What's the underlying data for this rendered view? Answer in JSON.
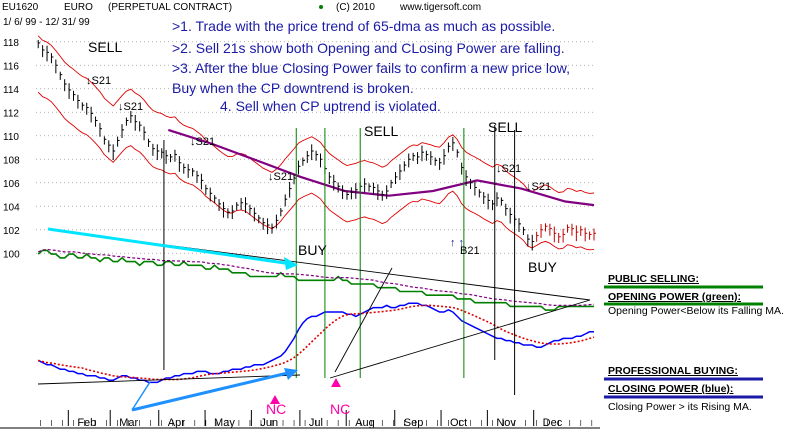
{
  "header": {
    "symbol": "EU1620",
    "name": "EURO",
    "contract": "(PERPETUAL CONTRACT)",
    "copyright": "(C) 2010",
    "site": "www.tigersoft.com",
    "range": "1/ 6/ 99 -  12/ 31/ 99"
  },
  "notes": [
    ">1. Trade with the price trend of 65-dma as much as possible.",
    ">2. Sell 21s show both Opening and CLosing Power are falling.",
    ">3. After the blue Closing Power fails to confirm a new price low,",
    "Buy when the CP downtrend is broken.",
    "4. Sell when CP uptrend is violated."
  ],
  "side_labels": {
    "public_selling": "PUBLIC SELLING:",
    "opening_power": "OPENING POWER (green):",
    "opening_desc": "Opening Power<Below its Falling MA.",
    "professional_buying": "PROFESSIONAL BUYING:",
    "closing_power": "CLOSING POWER (blue):",
    "closing_desc": "Closing Power > its Rising MA."
  },
  "colors": {
    "price_bars": "#000000",
    "ma65": "#800080",
    "bands": "#e00000",
    "opening_power": "#008000",
    "closing_power": "#0000ff",
    "cp_ma": "#e00000",
    "signal_lines": "#008000",
    "cyan_arrow": "#00e5ff",
    "blue_arrow": "#1e90ff",
    "nc_label": "#ff00aa",
    "accent_text": "#1a1aa6"
  },
  "chart_data": {
    "type": "line",
    "title": "EURO (PERPETUAL CONTRACT)",
    "xlabel": "",
    "ylabel": "",
    "ylim": [
      99,
      119
    ],
    "y_ticks": [
      100,
      102,
      104,
      106,
      108,
      110,
      112,
      114,
      116,
      118
    ],
    "months": [
      "Feb",
      "Mar",
      "Apr",
      "May",
      "Jun",
      "Jul",
      "Aug",
      "Sep",
      "Oct",
      "Nov",
      "Dec"
    ],
    "grid": true,
    "price_series": {
      "name": "Price",
      "x": [
        1,
        3,
        5,
        7,
        9,
        11,
        13,
        15,
        17,
        19,
        21,
        23,
        25,
        27,
        29,
        31,
        33,
        35,
        37,
        39,
        41,
        43,
        45,
        47,
        49,
        51,
        53,
        55,
        57,
        59,
        61,
        63,
        65,
        67,
        69,
        71,
        73,
        75,
        77,
        79,
        81,
        83,
        85,
        87,
        89,
        91,
        93,
        95,
        97,
        99,
        101,
        103,
        105,
        107,
        109,
        111,
        113,
        115,
        117,
        119,
        121,
        123,
        125,
        127,
        129,
        131,
        133,
        135,
        137,
        139,
        141,
        143,
        145,
        147,
        149,
        151,
        153,
        155,
        157,
        159,
        161,
        163,
        165,
        167,
        169,
        171,
        173,
        175,
        177,
        179,
        181,
        183,
        185,
        187,
        189,
        191,
        193,
        195,
        197,
        199,
        201,
        203,
        205,
        207,
        209,
        211,
        213,
        215,
        217,
        219,
        221,
        223,
        225,
        227,
        229,
        231,
        233,
        235,
        237,
        239,
        241,
        243,
        245,
        247,
        249,
        251,
        253
      ],
      "y": [
        117.8,
        117.2,
        117.0,
        116.6,
        115.9,
        115.1,
        114.3,
        113.8,
        113.4,
        112.9,
        112.5,
        112.3,
        111.8,
        111.2,
        110.5,
        109.6,
        109.1,
        108.6,
        109.5,
        110.4,
        111.2,
        111.6,
        111.1,
        110.8,
        110.2,
        109.4,
        108.8,
        108.6,
        108.5,
        108.2,
        108.1,
        108.3,
        107.6,
        107.2,
        107.0,
        106.9,
        106.5,
        106.1,
        105.4,
        105.0,
        104.6,
        104.1,
        103.7,
        103.4,
        103.5,
        104.0,
        104.2,
        104.1,
        103.7,
        103.3,
        102.9,
        102.5,
        102.3,
        102.1,
        102.7,
        103.5,
        104.5,
        105.4,
        106.3,
        107.3,
        107.8,
        108.2,
        108.6,
        108.3,
        107.9,
        107.1,
        106.4,
        106.0,
        105.6,
        105.2,
        104.9,
        105.1,
        105.3,
        105.6,
        105.8,
        105.6,
        105.5,
        105.2,
        104.9,
        105.2,
        105.9,
        106.4,
        106.9,
        107.4,
        107.9,
        108.2,
        108.1,
        108.5,
        108.3,
        108.1,
        107.8,
        107.6,
        108.2,
        109.0,
        109.3,
        108.5,
        107.2,
        106.4,
        105.9,
        105.5,
        105.1,
        104.7,
        104.4,
        104.1,
        104.6,
        104.4,
        103.7,
        103.2,
        102.8,
        102.4,
        101.9,
        101.1,
        100.9,
        101.4,
        101.9,
        102.2,
        102.0,
        101.6,
        101.3,
        101.5,
        102.1,
        102.0,
        101.7,
        101.9,
        101.6,
        101.5,
        101.6
      ]
    },
    "ma65_series": {
      "x": [
        60,
        80,
        100,
        120,
        140,
        160,
        180,
        200,
        220,
        240,
        253
      ],
      "y": [
        110.5,
        109.3,
        107.9,
        106.5,
        105.3,
        104.9,
        105.3,
        106.2,
        105.5,
        104.4,
        104.1
      ]
    },
    "opening_power": {
      "name": "OPENING POWER (green)",
      "values": [
        72,
        71,
        71,
        72,
        72,
        73,
        73,
        72,
        72,
        73,
        73,
        72,
        73,
        73,
        74,
        73,
        73,
        74,
        74,
        73,
        74,
        74,
        74,
        75,
        74,
        74,
        74,
        75,
        75,
        74,
        74,
        75,
        75,
        74,
        75,
        75,
        75,
        75,
        76,
        76,
        75,
        76,
        76,
        76,
        77,
        77,
        77,
        77,
        78,
        78,
        78,
        78,
        78,
        78,
        78,
        77,
        78,
        78,
        78,
        79,
        79,
        79,
        79,
        79,
        79,
        79,
        79,
        79,
        78,
        79,
        79,
        80,
        80,
        80,
        80,
        80,
        80,
        81,
        81,
        81,
        81,
        81,
        82,
        82,
        82,
        82,
        82,
        82,
        83,
        83,
        83,
        83,
        83,
        83,
        83,
        84,
        84,
        84,
        84,
        85,
        85,
        85,
        85,
        85,
        85,
        85,
        85,
        86,
        86,
        86,
        86,
        86,
        86,
        86,
        86,
        87,
        87,
        87,
        86,
        86,
        86,
        86,
        86,
        86,
        86,
        86,
        86
      ]
    },
    "closing_power": {
      "name": "CLOSING POWER (blue)",
      "values": [
        18,
        17,
        16,
        16,
        15,
        14,
        14,
        13,
        13,
        12,
        12,
        11,
        11,
        11,
        10,
        10,
        9,
        9,
        10,
        11,
        11,
        10,
        10,
        9,
        9,
        8,
        8,
        8,
        9,
        10,
        10,
        11,
        11,
        12,
        12,
        12,
        13,
        13,
        13,
        12,
        12,
        12,
        13,
        13,
        14,
        14,
        14,
        15,
        15,
        16,
        16,
        16,
        17,
        18,
        19,
        20,
        22,
        25,
        28,
        32,
        35,
        37,
        38,
        38,
        39,
        40,
        40,
        40,
        40,
        40,
        39,
        39,
        38,
        39,
        40,
        41,
        42,
        42,
        42,
        43,
        42,
        42,
        43,
        43,
        44,
        44,
        44,
        43,
        43,
        42,
        41,
        40,
        40,
        41,
        40,
        38,
        36,
        35,
        34,
        33,
        32,
        31,
        30,
        29,
        28,
        28,
        27,
        27,
        26,
        26,
        25,
        25,
        25,
        24,
        24,
        25,
        26,
        27,
        27,
        28,
        28,
        28,
        29,
        29,
        30,
        31,
        31
      ]
    },
    "signals": [
      {
        "label": "SELL"
      },
      {
        "label": "S21"
      },
      {
        "label": "S21"
      },
      {
        "label": "S21"
      },
      {
        "label": "S21"
      },
      {
        "label": "SELL"
      },
      {
        "label": "SELL"
      },
      {
        "label": "S21"
      },
      {
        "label": "S21"
      },
      {
        "label": "B21"
      },
      {
        "label": "BUY"
      },
      {
        "label": "BUY"
      },
      {
        "label": "NC"
      },
      {
        "label": "NC"
      }
    ]
  }
}
